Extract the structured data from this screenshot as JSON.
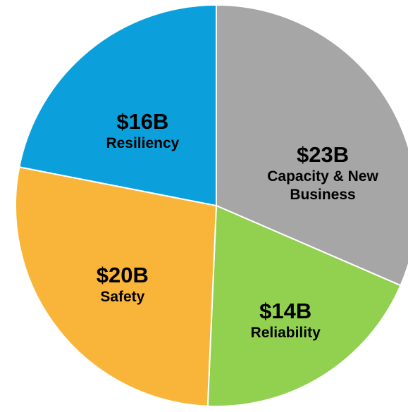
{
  "chart_data": {
    "type": "pie",
    "categories": [
      "Capacity & New Business",
      "Reliability",
      "Safety",
      "Resiliency"
    ],
    "values": [
      23,
      14,
      20,
      16
    ],
    "value_labels": [
      "$23B",
      "$14B",
      "$20B",
      "$16B"
    ],
    "colors": [
      "#a6a6a6",
      "#92d050",
      "#f9b53a",
      "#0ba0dc"
    ]
  }
}
